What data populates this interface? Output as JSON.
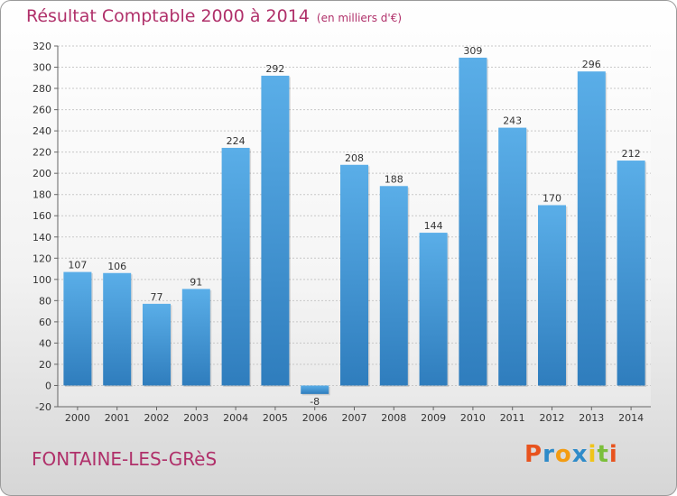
{
  "header": {
    "title": "Résultat Comptable 2000 à 2014",
    "unit": "(en milliers d'€)"
  },
  "footer": {
    "commune": "FONTAINE-LES-GRèS",
    "logo": "Proxiti",
    "logo_colors": [
      "#e8531e",
      "#2e8bc9",
      "#f39c12",
      "#2e8bc9",
      "#f0c419",
      "#7bbf3a",
      "#e8531e"
    ]
  },
  "colors": {
    "title": "#b0306a",
    "bar_light": "#5aaee8",
    "bar_dark": "#2f7dbd",
    "grid": "#c8c8c8"
  },
  "chart_data": {
    "type": "bar",
    "title": "Résultat Comptable 2000 à 2014",
    "subtitle": "(en milliers d'€)",
    "categories": [
      "2000",
      "2001",
      "2002",
      "2003",
      "2004",
      "2005",
      "2006",
      "2007",
      "2008",
      "2009",
      "2010",
      "2011",
      "2012",
      "2013",
      "2014"
    ],
    "values": [
      107,
      106,
      77,
      91,
      224,
      292,
      -8,
      208,
      188,
      144,
      309,
      243,
      170,
      296,
      212
    ],
    "data_labels": [
      "107",
      "106",
      "77",
      "91",
      "224",
      "292",
      "-8",
      "208",
      "188",
      "144",
      "309",
      "243",
      "170",
      "296",
      "212"
    ],
    "y_ticks": [
      "-20",
      "0",
      "20",
      "40",
      "60",
      "80",
      "100",
      "120",
      "140",
      "160",
      "180",
      "200",
      "220",
      "240",
      "260",
      "280",
      "300",
      "320"
    ],
    "ylim": [
      -20,
      320
    ],
    "grid": true
  }
}
